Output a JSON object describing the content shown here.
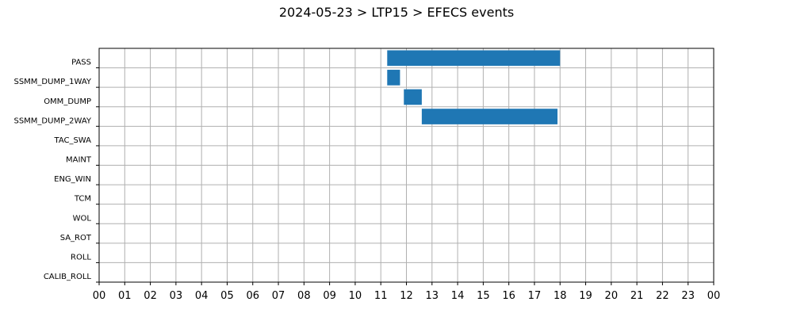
{
  "chart_data": {
    "type": "bar",
    "orientation": "horizontal-timeline",
    "title": "2024-05-23 > LTP15 > EFECS events",
    "xlabel": "",
    "ylabel": "",
    "xlim": [
      0,
      24
    ],
    "x_tick_labels": [
      "00",
      "01",
      "02",
      "03",
      "04",
      "05",
      "06",
      "07",
      "08",
      "09",
      "10",
      "11",
      "12",
      "13",
      "14",
      "15",
      "16",
      "17",
      "18",
      "19",
      "20",
      "21",
      "22",
      "23",
      "00"
    ],
    "categories": [
      "PASS",
      "SSMM_DUMP_1WAY",
      "OMM_DUMP",
      "SSMM_DUMP_2WAY",
      "TAC_SWA",
      "MAINT",
      "ENG_WIN",
      "TCM",
      "WOL",
      "SA_ROT",
      "ROLL",
      "CALIB_ROLL"
    ],
    "events": [
      {
        "category": "PASS",
        "start": 11.25,
        "end": 18.0
      },
      {
        "category": "SSMM_DUMP_1WAY",
        "start": 11.25,
        "end": 11.75
      },
      {
        "category": "OMM_DUMP",
        "start": 11.9,
        "end": 12.6
      },
      {
        "category": "SSMM_DUMP_2WAY",
        "start": 12.6,
        "end": 17.9
      }
    ],
    "bar_color": "#1f77b4",
    "grid": true,
    "legend": "none"
  }
}
